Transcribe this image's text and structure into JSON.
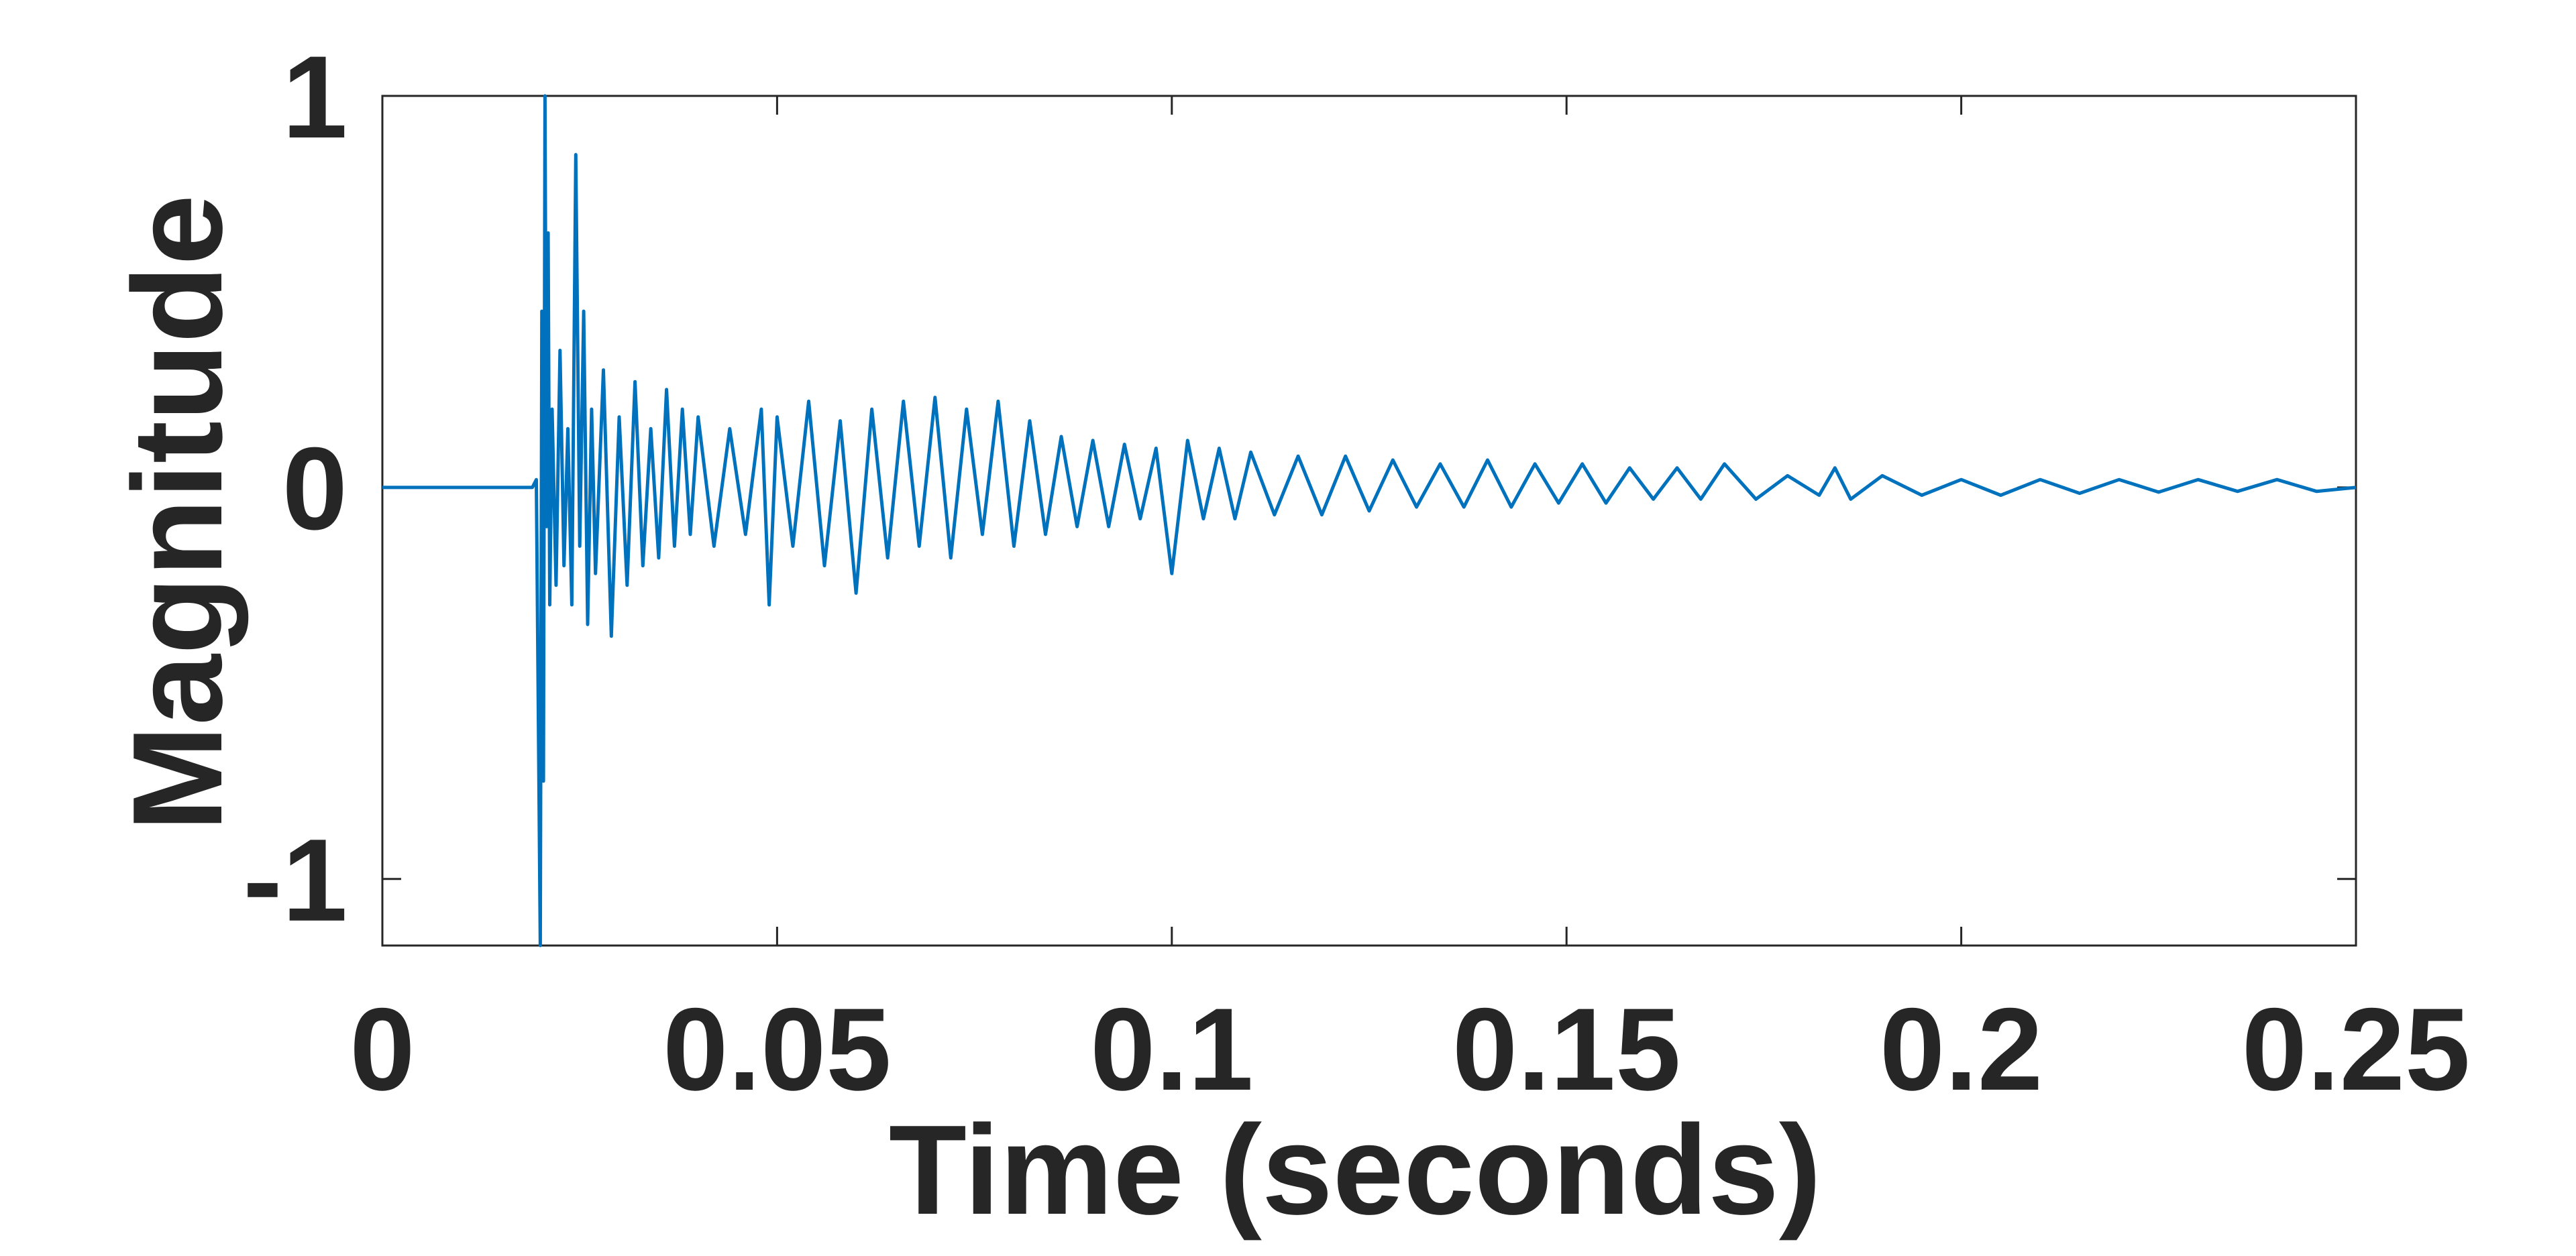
{
  "chart_data": {
    "type": "line",
    "title": "",
    "xlabel": "Time (seconds)",
    "ylabel": "Magnitude",
    "xlim": [
      0,
      0.25
    ],
    "ylim": [
      -1.17,
      1.0
    ],
    "x_ticks": [
      0,
      0.05,
      0.1,
      0.15,
      0.2,
      0.25
    ],
    "x_tick_labels": [
      "0",
      "0.05",
      "0.1",
      "0.15",
      "0.2",
      "0.25"
    ],
    "y_ticks": [
      -1,
      0,
      1
    ],
    "y_tick_labels": [
      "-1",
      "0",
      "1"
    ],
    "grid": false,
    "legend": "none",
    "series_color": "#0072BD",
    "axis_color": "#262626",
    "series": [
      {
        "values_description_free": true,
        "x": [
          0,
          0.019,
          0.0195,
          0.02,
          0.0202,
          0.0204,
          0.0206,
          0.0208,
          0.021,
          0.0212,
          0.0215,
          0.022,
          0.0225,
          0.023,
          0.0235,
          0.024,
          0.0245,
          0.025,
          0.0255,
          0.026,
          0.0265,
          0.027,
          0.028,
          0.029,
          0.03,
          0.031,
          0.032,
          0.033,
          0.034,
          0.035,
          0.036,
          0.037,
          0.038,
          0.039,
          0.04,
          0.042,
          0.044,
          0.046,
          0.048,
          0.049,
          0.05,
          0.052,
          0.054,
          0.056,
          0.058,
          0.06,
          0.062,
          0.064,
          0.066,
          0.068,
          0.07,
          0.072,
          0.074,
          0.076,
          0.078,
          0.08,
          0.082,
          0.084,
          0.086,
          0.088,
          0.09,
          0.092,
          0.094,
          0.096,
          0.098,
          0.1,
          0.102,
          0.104,
          0.106,
          0.108,
          0.11,
          0.113,
          0.116,
          0.119,
          0.122,
          0.125,
          0.128,
          0.131,
          0.134,
          0.137,
          0.14,
          0.143,
          0.146,
          0.149,
          0.152,
          0.155,
          0.158,
          0.161,
          0.164,
          0.167,
          0.17,
          0.174,
          0.178,
          0.182,
          0.184,
          0.186,
          0.19,
          0.195,
          0.2,
          0.205,
          0.21,
          0.215,
          0.22,
          0.225,
          0.23,
          0.235,
          0.24,
          0.245,
          0.25
        ],
        "y": [
          0,
          0,
          0.02,
          -1.17,
          0.45,
          -0.75,
          1.0,
          -0.1,
          0.65,
          -0.3,
          0.2,
          -0.25,
          0.35,
          -0.2,
          0.15,
          -0.3,
          0.85,
          -0.15,
          0.45,
          -0.35,
          0.2,
          -0.22,
          0.3,
          -0.38,
          0.18,
          -0.25,
          0.27,
          -0.2,
          0.15,
          -0.18,
          0.25,
          -0.15,
          0.2,
          -0.12,
          0.18,
          -0.15,
          0.15,
          -0.12,
          0.2,
          -0.3,
          0.18,
          -0.15,
          0.22,
          -0.2,
          0.17,
          -0.27,
          0.2,
          -0.18,
          0.22,
          -0.15,
          0.23,
          -0.18,
          0.2,
          -0.12,
          0.22,
          -0.15,
          0.17,
          -0.12,
          0.13,
          -0.1,
          0.12,
          -0.1,
          0.11,
          -0.08,
          0.1,
          -0.22,
          0.12,
          -0.08,
          0.1,
          -0.08,
          0.09,
          -0.07,
          0.08,
          -0.07,
          0.08,
          -0.06,
          0.07,
          -0.05,
          0.06,
          -0.05,
          0.07,
          -0.05,
          0.06,
          -0.04,
          0.06,
          -0.04,
          0.05,
          -0.03,
          0.05,
          -0.03,
          0.06,
          -0.03,
          0.03,
          -0.02,
          0.05,
          -0.03,
          0.03,
          -0.02,
          0.02,
          -0.02,
          0.02,
          -0.015,
          0.02,
          -0.012,
          0.02,
          -0.01,
          0.02,
          -0.01,
          0.0
        ]
      }
    ]
  }
}
